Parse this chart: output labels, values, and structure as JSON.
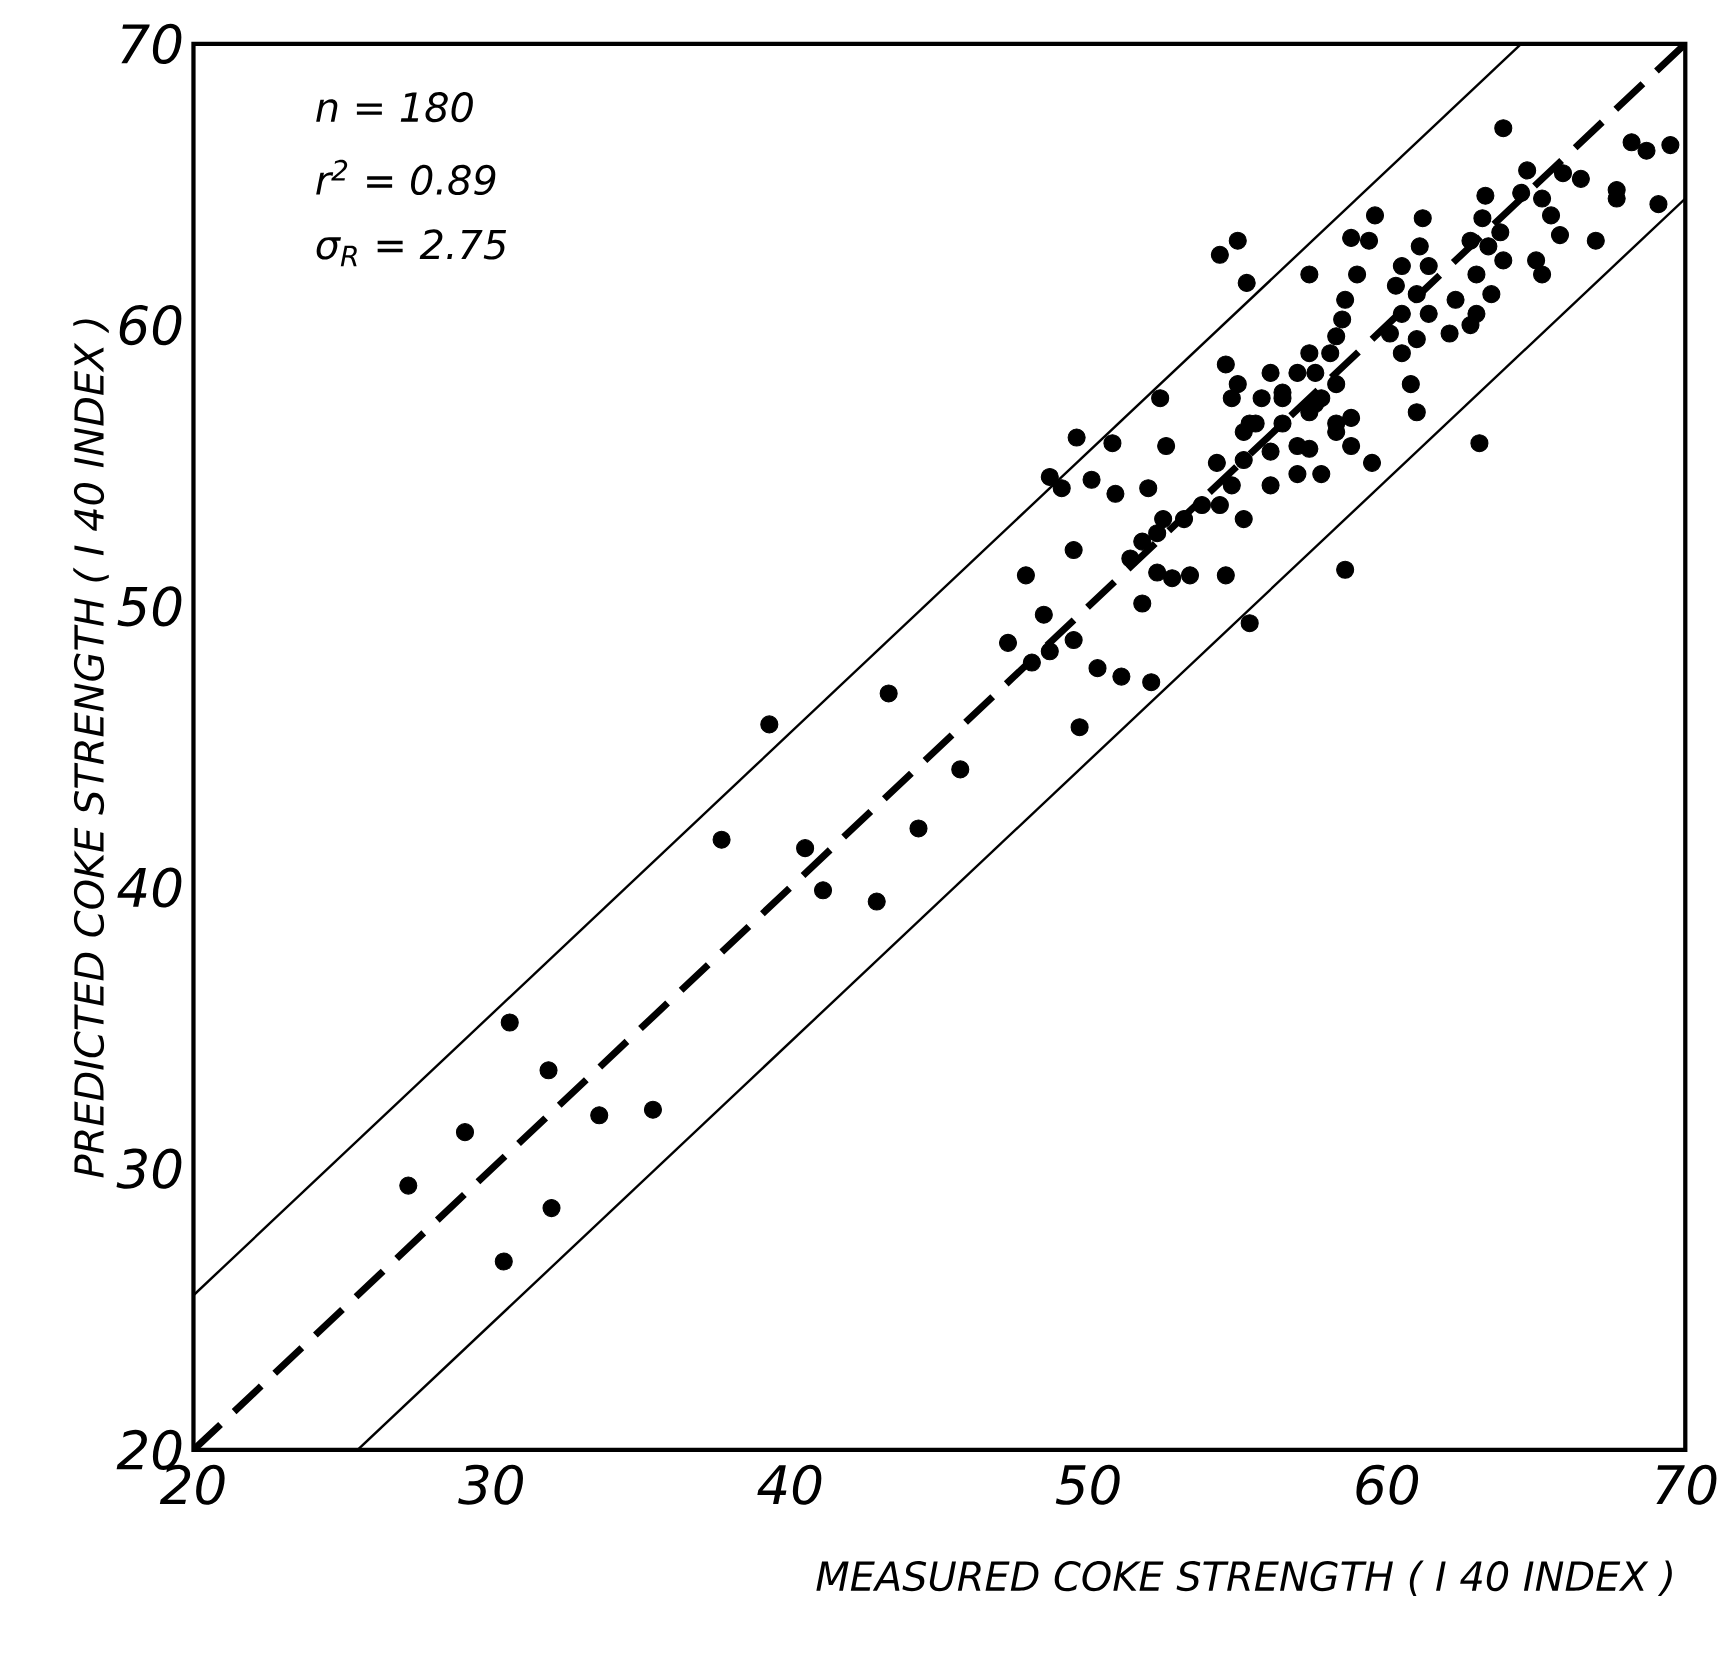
{
  "chart_data": {
    "type": "line",
    "xlabel": "MEASURED COKE STRENGTH ( I 40 INDEX )",
    "ylabel": "PREDICTED COKE STRENGTH ( I 40 INDEX )",
    "annotations": [
      "n  = 180",
      "r$^{2}$ = 0.89",
      "σ$_{R}$ = 2.75"
    ],
    "xlim": [
      20,
      70
    ],
    "ylim": [
      20,
      70
    ],
    "xticks": [
      20,
      30,
      40,
      50,
      60,
      70
    ],
    "yticks": [
      20,
      30,
      40,
      50,
      60,
      70
    ],
    "grid": false,
    "series": [
      {
        "type": "scatter",
        "marker": "circle",
        "color": "#000000",
        "x": [
          39.3,
          43.3,
          45.7,
          37.7,
          40.5,
          44.3,
          41.1,
          42.9,
          30.6,
          31.9,
          33.6,
          35.4,
          29.1,
          27.2,
          32.0,
          30.4,
          61.0,
          63.1,
          59.5,
          58.6,
          55.4,
          49.6,
          50.8,
          52.6,
          48.7,
          49.1,
          50.1,
          50.9,
          52.0,
          49.5,
          47.9,
          48.5,
          47.3,
          48.1,
          48.7,
          49.5,
          50.3,
          51.1,
          52.1,
          49.7,
          51.8,
          51.4,
          51.8,
          52.3,
          52.5,
          53.2,
          53.8,
          54.4,
          54.8,
          55.2,
          53.4,
          54.6,
          52.8,
          52.3,
          54.3,
          55.2,
          55.6,
          56.1,
          57.0,
          57.8,
          58.3,
          58.8,
          57.4,
          57.6,
          56.5,
          63.9,
          68.2,
          68.7,
          69.5,
          69.1,
          67.0,
          67.7,
          67.7,
          66.5,
          65.9,
          64.7,
          64.5,
          63.3,
          65.2,
          65.5,
          65.8,
          65.0,
          65.2,
          63.2,
          63.8,
          63.4,
          62.8,
          63.9,
          63.0,
          63.5,
          63.0,
          62.8,
          62.1,
          61.2,
          61.1,
          59.6,
          58.8,
          59.4,
          61.4,
          60.5,
          60.3,
          61.0,
          60.5,
          61.4,
          60.1,
          61.0,
          60.5,
          59.0,
          58.6,
          58.5,
          58.3,
          58.1,
          57.4,
          55.0,
          54.4,
          55.3,
          57.4,
          57.6,
          57.0,
          56.5,
          58.3,
          58.8,
          58.3,
          57.8,
          54.6,
          55.0,
          54.8,
          56.1,
          55.8,
          55.4,
          56.5,
          57.4,
          57.0,
          56.1,
          55.2,
          60.8,
          62.3,
          52.4
        ],
        "values": [
          45.8,
          46.9,
          44.2,
          41.7,
          41.4,
          42.1,
          39.9,
          39.5,
          35.2,
          33.5,
          31.9,
          32.1,
          31.3,
          29.4,
          28.6,
          26.7,
          56.9,
          55.8,
          55.1,
          51.3,
          49.4,
          56.0,
          55.8,
          55.7,
          54.6,
          54.2,
          54.5,
          54.0,
          54.2,
          52.0,
          51.1,
          49.7,
          48.7,
          48.0,
          48.4,
          48.8,
          47.8,
          47.5,
          47.3,
          45.7,
          50.1,
          51.7,
          52.3,
          52.6,
          53.1,
          53.1,
          53.6,
          53.6,
          54.3,
          53.1,
          51.1,
          51.1,
          51.0,
          51.2,
          55.1,
          56.2,
          56.5,
          54.3,
          54.7,
          54.7,
          56.5,
          55.7,
          55.6,
          57.2,
          57.4,
          67.0,
          66.5,
          66.2,
          66.4,
          64.3,
          63.0,
          64.8,
          64.5,
          65.2,
          65.4,
          65.5,
          64.7,
          64.6,
          64.5,
          63.9,
          63.2,
          62.3,
          61.8,
          63.8,
          63.3,
          62.8,
          63.0,
          62.3,
          61.8,
          61.1,
          60.4,
          60.0,
          59.7,
          63.8,
          62.8,
          63.9,
          63.1,
          63.0,
          62.1,
          62.1,
          61.4,
          61.1,
          60.4,
          60.4,
          59.7,
          59.5,
          59.0,
          61.8,
          60.9,
          60.2,
          59.6,
          59.0,
          61.8,
          63.0,
          62.5,
          61.5,
          59.0,
          58.3,
          58.3,
          57.6,
          57.9,
          56.7,
          56.2,
          57.4,
          58.6,
          57.9,
          57.4,
          58.3,
          57.4,
          56.5,
          56.5,
          56.9,
          55.7,
          55.5,
          55.2,
          57.9,
          60.9,
          57.4
        ]
      },
      {
        "line_style": "dashed",
        "color": "#000000",
        "x": [
          20,
          70
        ],
        "values": [
          20,
          70
        ]
      },
      {
        "line_style": "solid",
        "color": "#000000",
        "x": [
          20,
          64.5
        ],
        "values": [
          25.5,
          70
        ]
      },
      {
        "line_style": "solid",
        "color": "#000000",
        "x": [
          25.5,
          70
        ],
        "values": [
          20,
          64.5
        ]
      }
    ]
  }
}
